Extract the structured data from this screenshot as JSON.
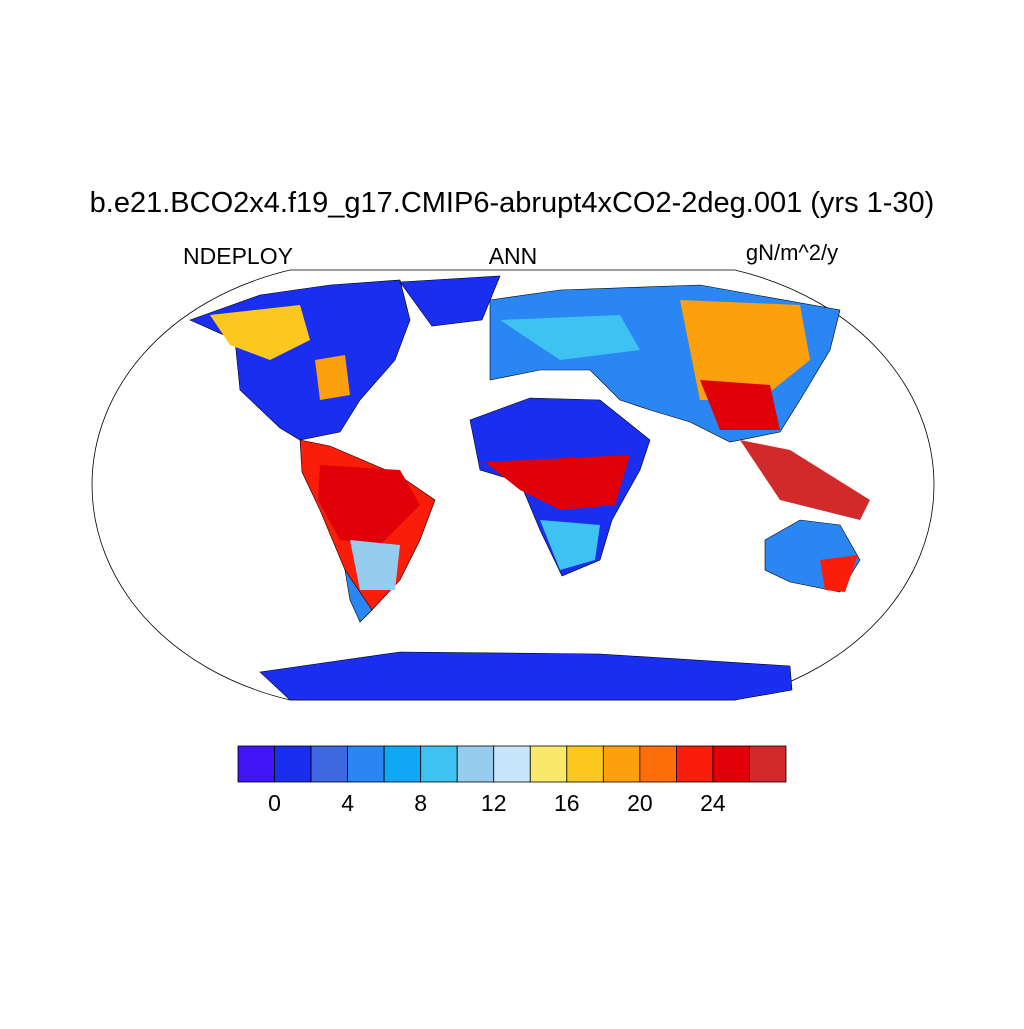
{
  "chart_data": {
    "type": "map",
    "title": "b.e21.BCO2x4.f19_g17.CMIP6-abrupt4xCO2-2deg.001 (yrs 1-30)",
    "left_label": "NDEPLOY",
    "center_label": "ANN",
    "right_label": "gN/m^2/y",
    "colorbar": {
      "colors": [
        "#4016f5",
        "#1a2ef0",
        "#3d68e0",
        "#2a86f2",
        "#10a8f5",
        "#3ec2f2",
        "#96cdef",
        "#c8e6fa",
        "#fae86b",
        "#fcc820",
        "#fca00e",
        "#fc6e08",
        "#fa1e0a",
        "#e00008",
        "#d22a2a"
      ],
      "lim": [
        -2,
        28
      ],
      "ticks": [
        0,
        4,
        8,
        12,
        16,
        20,
        24
      ]
    }
  }
}
